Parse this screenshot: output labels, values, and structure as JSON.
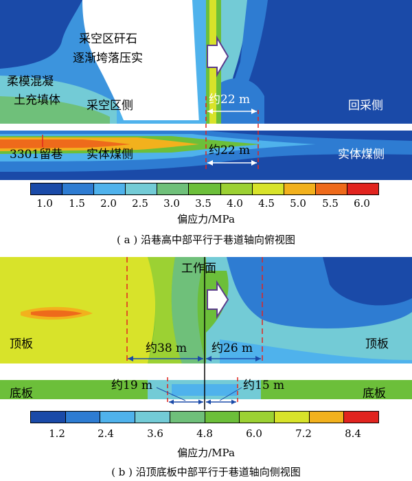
{
  "panel_a": {
    "labels": {
      "goaf_rock": [
        "采空区矸石",
        "逐渐垮落压实"
      ],
      "fill_body": [
        "柔模混凝",
        "土充填体"
      ],
      "goaf_side": "采空区侧",
      "recovery_side": "回采侧",
      "roadway": "3301留巷",
      "solid_coal_left": "实体煤侧",
      "solid_coal_right": "实体煤侧",
      "dist_upper": "约22 m",
      "dist_lower": "约22 m"
    },
    "colorbar": {
      "ticks": [
        "1.0",
        "1.5",
        "2.0",
        "2.5",
        "3.0",
        "3.5",
        "4.0",
        "4.5",
        "5.0",
        "5.5",
        "6.0"
      ],
      "colors": [
        "#1a4aa8",
        "#2e7cd2",
        "#4fb2ec",
        "#73cbd6",
        "#6fc07a",
        "#6cbf3a",
        "#9cd133",
        "#d8e32a",
        "#f2b11d",
        "#ee6a1b",
        "#e1241f"
      ],
      "label": "偏应力/MPa"
    },
    "caption": "( a ) 沿巷高中部平行于巷道轴向俯视图"
  },
  "panel_b": {
    "labels": {
      "working_face": "工作面",
      "roof_left": "顶板",
      "roof_right": "顶板",
      "floor_left": "底板",
      "floor_right": "底板",
      "dist_38": "约38 m",
      "dist_26": "约26 m",
      "dist_19": "约19 m",
      "dist_15": "约15 m"
    },
    "colorbar": {
      "ticks": [
        "1.2",
        "2.4",
        "3.6",
        "4.8",
        "6.0",
        "7.2",
        "8.4"
      ],
      "colors": [
        "#1a4aa8",
        "#2e7cd2",
        "#73cbd6",
        "#6fc07a",
        "#6cbf3a",
        "#9cd133",
        "#d8e32a",
        "#f2b11d",
        "#ee6a1b",
        "#e1241f"
      ],
      "label": "偏应力/MPa"
    },
    "caption": "( b ) 沿顶底板中部平行于巷道轴向侧视图"
  }
}
